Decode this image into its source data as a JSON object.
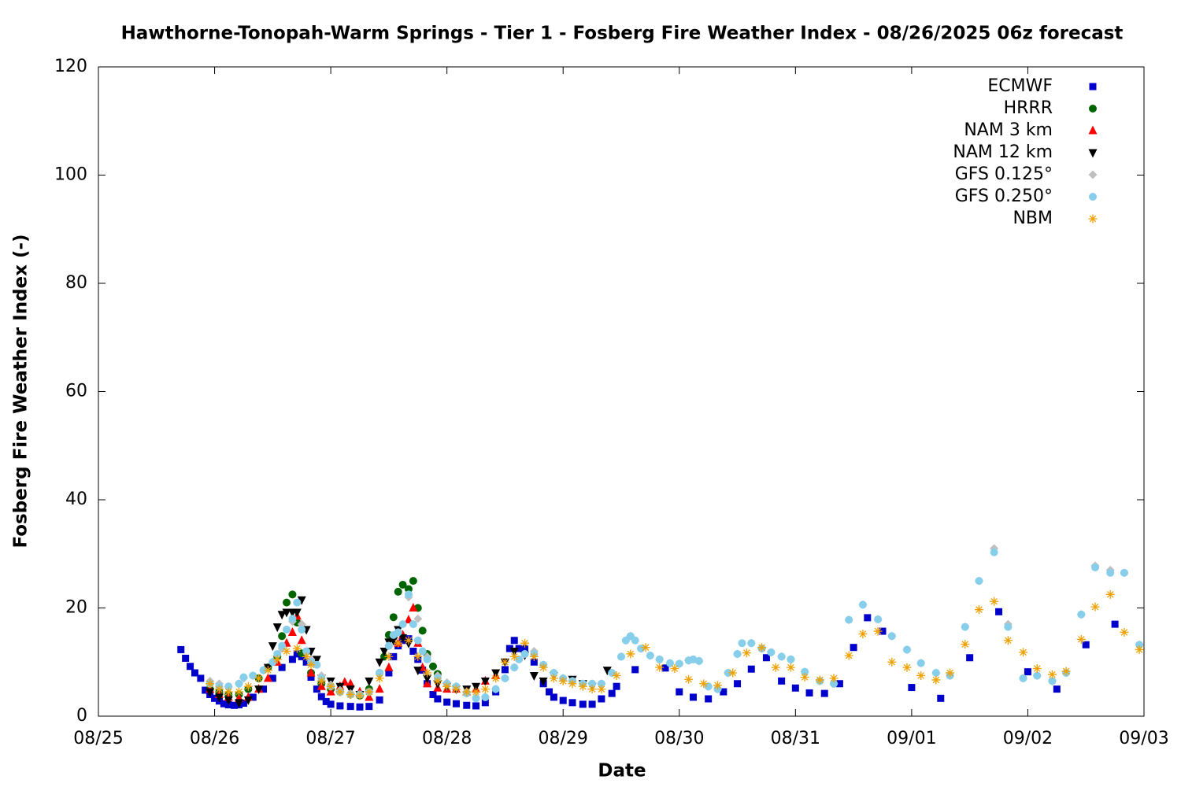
{
  "chart_data": {
    "type": "scatter",
    "title": "Hawthorne-Tonopah-Warm Springs - Tier 1 - Fosberg Fire Weather Index - 08/26/2025 06z forecast",
    "xlabel": "Date",
    "ylabel": "Fosberg Fire Weather Index (-)",
    "xlim": [
      0,
      9
    ],
    "xticks": [
      {
        "value": 0,
        "label": "08/25"
      },
      {
        "value": 1,
        "label": "08/26"
      },
      {
        "value": 2,
        "label": "08/27"
      },
      {
        "value": 3,
        "label": "08/28"
      },
      {
        "value": 4,
        "label": "08/29"
      },
      {
        "value": 5,
        "label": "08/30"
      },
      {
        "value": 6,
        "label": "08/31"
      },
      {
        "value": 7,
        "label": "09/01"
      },
      {
        "value": 8,
        "label": "09/02"
      },
      {
        "value": 9,
        "label": "09/03"
      }
    ],
    "ylim": [
      0,
      120
    ],
    "yticks": [
      0,
      20,
      40,
      60,
      80,
      100,
      120
    ],
    "grid": false,
    "legend": "top right",
    "series": [
      {
        "name": "ECMWF",
        "color": "#0000cc",
        "marker": "square",
        "x": [
          0.71,
          0.75,
          0.79,
          0.83,
          0.88,
          0.92,
          0.96,
          1.0,
          1.04,
          1.08,
          1.12,
          1.17,
          1.21,
          1.25,
          1.33,
          1.42,
          1.5,
          1.58,
          1.67,
          1.71,
          1.75,
          1.79,
          1.83,
          1.88,
          1.92,
          1.96,
          2.0,
          2.08,
          2.17,
          2.25,
          2.33,
          2.42,
          2.5,
          2.54,
          2.58,
          2.62,
          2.67,
          2.71,
          2.75,
          2.79,
          2.83,
          2.88,
          2.92,
          3.0,
          3.08,
          3.17,
          3.25,
          3.33,
          3.42,
          3.5,
          3.54,
          3.58,
          3.62,
          3.67,
          3.75,
          3.83,
          3.88,
          3.92,
          4.0,
          4.08,
          4.17,
          4.25,
          4.33,
          4.42,
          4.46,
          4.62,
          4.88,
          5.0,
          5.12,
          5.25,
          5.38,
          5.5,
          5.62,
          5.75,
          5.88,
          6.0,
          6.12,
          6.25,
          6.38,
          6.5,
          6.62,
          6.75,
          7.0,
          7.25,
          7.5,
          7.75,
          8.0,
          8.25,
          8.5,
          8.75
        ],
        "values": [
          12.3,
          10.7,
          9.2,
          8,
          7,
          4.8,
          4,
          3.3,
          2.8,
          2.3,
          2.1,
          2.0,
          2.1,
          2.4,
          3.5,
          5,
          7,
          9,
          10.5,
          11.5,
          11,
          10,
          7.2,
          5,
          3.6,
          2.7,
          2.2,
          1.9,
          1.8,
          1.7,
          1.8,
          3,
          8,
          11,
          13,
          14,
          14.3,
          12,
          10.5,
          8.5,
          6,
          4,
          3.2,
          2.6,
          2.3,
          2.0,
          1.9,
          2.5,
          4.5,
          8.6,
          12.5,
          14,
          12.5,
          12.5,
          10,
          6,
          4.5,
          3.5,
          2.9,
          2.5,
          2.2,
          2.2,
          3.2,
          4.2,
          5.5,
          8.6,
          8.9,
          4.5,
          3.5,
          3.2,
          4.5,
          6,
          8.7,
          10.8,
          6.5,
          5.2,
          4.3,
          4.2,
          6,
          12.7,
          18.2,
          15.7,
          5.3,
          3.3,
          10.8,
          19.3,
          8.2,
          5.0,
          13.2,
          17.0
        ]
      },
      {
        "name": "HRRR",
        "color": "#006400",
        "marker": "circle",
        "x": [
          0.96,
          1.04,
          1.12,
          1.21,
          1.29,
          1.38,
          1.46,
          1.54,
          1.58,
          1.62,
          1.67,
          1.71,
          1.75,
          1.83,
          1.92,
          2.0,
          2.08,
          2.17,
          2.25,
          2.33,
          2.42,
          2.46,
          2.5,
          2.54,
          2.58,
          2.62,
          2.67,
          2.71,
          2.75,
          2.79,
          2.83,
          2.88,
          2.92
        ],
        "values": [
          5,
          4.5,
          4,
          4,
          5,
          7,
          9,
          11,
          14.8,
          21,
          22.5,
          17.3,
          11.6,
          8,
          6,
          5,
          4.5,
          4,
          3.8,
          5,
          8,
          11,
          15,
          18.3,
          23,
          24.3,
          23.5,
          25,
          20,
          15.8,
          11.5,
          9.2,
          7.8
        ]
      },
      {
        "name": "NAM 3 km",
        "color": "#ff0000",
        "marker": "triangle",
        "x": [
          0.96,
          1.04,
          1.12,
          1.21,
          1.29,
          1.38,
          1.46,
          1.54,
          1.62,
          1.67,
          1.71,
          1.75,
          1.83,
          1.92,
          2.0,
          2.08,
          2.12,
          2.17,
          2.25,
          2.33,
          2.42,
          2.5,
          2.58,
          2.62,
          2.67,
          2.71,
          2.75,
          2.79,
          2.83,
          2.92,
          3.0,
          3.08,
          3.17,
          3.25,
          3.33,
          3.42
        ],
        "values": [
          5,
          4,
          3.5,
          3.3,
          3.5,
          5,
          7,
          10,
          13.5,
          15.5,
          18.5,
          14,
          8,
          5.5,
          4.5,
          5.5,
          6.3,
          6,
          4.5,
          3.5,
          5,
          9,
          13.5,
          15,
          17.8,
          20,
          13.5,
          9,
          6,
          5.2,
          5,
          5,
          4.5,
          5,
          6.5,
          7.5
        ]
      },
      {
        "name": "NAM 12 km",
        "color": "#000000",
        "marker": "triangle-down",
        "x": [
          0.96,
          1.04,
          1.12,
          1.21,
          1.29,
          1.38,
          1.46,
          1.5,
          1.54,
          1.58,
          1.62,
          1.67,
          1.71,
          1.75,
          1.79,
          1.83,
          1.88,
          1.92,
          2.0,
          2.08,
          2.17,
          2.25,
          2.33,
          2.42,
          2.46,
          2.5,
          2.54,
          2.58,
          2.62,
          2.67,
          2.75,
          2.83,
          2.92,
          3.0,
          3.08,
          3.17,
          3.25,
          3.33,
          3.42,
          3.5,
          3.58,
          3.67,
          3.75,
          3.83,
          3.92,
          4.08,
          4.17,
          4.25,
          4.38
        ],
        "values": [
          4.5,
          3.5,
          3,
          2.5,
          3,
          5,
          9,
          13,
          16.5,
          18.8,
          19.2,
          19.2,
          19.2,
          21.5,
          16,
          12,
          10.5,
          7,
          6.5,
          5.5,
          5,
          4,
          6.5,
          10,
          12,
          13.7,
          14,
          16,
          14.5,
          13.5,
          8.5,
          7,
          6,
          5.5,
          5,
          5,
          5.5,
          6.5,
          8,
          10,
          12,
          11.3,
          7.5,
          6.5,
          7.5,
          6.8,
          6,
          5.5,
          8.5
        ]
      },
      {
        "name": "GFS 0.125°",
        "color": "#c0c0c0",
        "marker": "diamond",
        "x": [
          0.96,
          1.04,
          1.12,
          1.21,
          1.25,
          1.33,
          1.42,
          1.5,
          1.58,
          1.67,
          1.75,
          1.83,
          1.92,
          2.0,
          2.08,
          2.17,
          2.25,
          2.33,
          2.42,
          2.5,
          2.58,
          2.67,
          2.75,
          2.83,
          2.92,
          3.0,
          3.08,
          3.17,
          3.25,
          3.33,
          3.42,
          3.5,
          3.58,
          3.67,
          3.75,
          3.83,
          3.92,
          4.0,
          4.08,
          4.17,
          4.25,
          4.33,
          4.42,
          4.5,
          4.58,
          4.67,
          4.75,
          4.83,
          4.92,
          5.0,
          5.08,
          5.17,
          5.25,
          5.33,
          5.42,
          5.5,
          5.62,
          5.71,
          5.79,
          5.88,
          5.96,
          6.08,
          6.21,
          6.33,
          6.46,
          6.58,
          6.71,
          6.83,
          6.96,
          7.08,
          7.21,
          7.33,
          7.46,
          7.58,
          7.71,
          7.83,
          7.96,
          8.08,
          8.21,
          8.33,
          8.46,
          8.58,
          8.71,
          8.83,
          8.96
        ],
        "values": [
          6.5,
          6,
          5.5,
          6,
          7,
          7.5,
          8.5,
          10,
          12.5,
          17.5,
          17,
          10.5,
          7.5,
          5.8,
          4.8,
          4.2,
          4,
          4.5,
          8,
          13,
          15.5,
          22,
          18,
          11,
          7.5,
          6.2,
          5.5,
          4.5,
          3.5,
          3.6,
          5,
          7,
          9,
          11.5,
          12,
          9.5,
          8,
          7,
          6.5,
          6,
          6,
          6,
          8,
          11,
          14.8,
          12.5,
          11.2,
          10.5,
          9.8,
          9.7,
          10.3,
          10.2,
          5.5,
          5,
          8,
          11.5,
          13.5,
          12.5,
          11.8,
          11,
          10.5,
          8.2,
          6.5,
          6,
          17.8,
          20.6,
          17.9,
          14.8,
          12.3,
          9.8,
          8,
          7.5,
          16.5,
          25,
          31,
          17,
          7,
          7.5,
          6.5,
          8,
          18.8,
          27.8,
          27,
          26.5,
          13.2
        ]
      },
      {
        "name": "GFS 0.250°",
        "color": "#87ceeb",
        "marker": "circle",
        "x": [
          0.96,
          1.04,
          1.12,
          1.21,
          1.25,
          1.33,
          1.42,
          1.5,
          1.54,
          1.58,
          1.62,
          1.67,
          1.71,
          1.75,
          1.79,
          1.83,
          1.88,
          1.92,
          2.0,
          2.08,
          2.17,
          2.25,
          2.33,
          2.42,
          2.5,
          2.54,
          2.58,
          2.62,
          2.67,
          2.71,
          2.75,
          2.79,
          2.83,
          2.92,
          3.0,
          3.08,
          3.17,
          3.25,
          3.33,
          3.42,
          3.5,
          3.58,
          3.62,
          3.67,
          3.75,
          3.83,
          3.92,
          4.0,
          4.08,
          4.17,
          4.25,
          4.33,
          4.42,
          4.5,
          4.54,
          4.58,
          4.62,
          4.67,
          4.75,
          4.83,
          4.92,
          5.0,
          5.08,
          5.12,
          5.17,
          5.25,
          5.33,
          5.42,
          5.5,
          5.54,
          5.62,
          5.71,
          5.79,
          5.88,
          5.96,
          6.08,
          6.21,
          6.33,
          6.46,
          6.58,
          6.71,
          6.83,
          6.96,
          7.08,
          7.21,
          7.33,
          7.46,
          7.58,
          7.71,
          7.83,
          7.96,
          8.08,
          8.21,
          8.33,
          8.46,
          8.58,
          8.71,
          8.83,
          8.96
        ],
        "values": [
          6,
          5.5,
          5.5,
          6,
          7.2,
          7.5,
          8.5,
          10,
          11.5,
          13,
          16,
          18,
          21,
          16,
          12,
          10,
          9.5,
          7,
          5.5,
          4.5,
          4,
          4,
          4.5,
          8,
          13,
          15,
          15.5,
          17,
          22.5,
          17,
          14,
          12,
          10.5,
          7,
          6,
          5.5,
          4.2,
          3.3,
          3.5,
          5,
          7,
          9,
          10.5,
          11.5,
          11.5,
          9.5,
          8,
          7,
          6.5,
          6,
          6,
          6,
          8,
          11,
          14,
          14.8,
          14,
          12.5,
          11.2,
          10.5,
          9.8,
          9.7,
          10.3,
          10.5,
          10.2,
          5.5,
          5,
          8,
          11.5,
          13.5,
          13.5,
          12.5,
          11.8,
          11,
          10.5,
          8.2,
          6.5,
          6,
          17.8,
          20.6,
          17.9,
          14.8,
          12.3,
          9.8,
          8,
          7.5,
          16.5,
          25,
          30.3,
          16.5,
          7,
          7.5,
          6.5,
          8,
          18.8,
          27.5,
          26.5,
          26.5,
          13.2
        ]
      },
      {
        "name": "NBM",
        "color": "#f0a000",
        "marker": "asterisk",
        "x": [
          0.96,
          1.04,
          1.12,
          1.21,
          1.29,
          1.38,
          1.46,
          1.54,
          1.62,
          1.71,
          1.79,
          1.83,
          1.92,
          2.0,
          2.08,
          2.17,
          2.25,
          2.33,
          2.42,
          2.5,
          2.58,
          2.67,
          2.75,
          2.83,
          2.92,
          3.0,
          3.08,
          3.17,
          3.25,
          3.33,
          3.42,
          3.5,
          3.58,
          3.67,
          3.75,
          3.83,
          3.92,
          4.0,
          4.08,
          4.17,
          4.25,
          4.33,
          4.46,
          4.58,
          4.71,
          4.83,
          4.96,
          5.08,
          5.21,
          5.33,
          5.46,
          5.58,
          5.71,
          5.83,
          5.96,
          6.08,
          6.21,
          6.33,
          6.46,
          6.58,
          6.71,
          6.83,
          6.96,
          7.08,
          7.21,
          7.33,
          7.46,
          7.58,
          7.71,
          7.83,
          7.96,
          8.08,
          8.21,
          8.33,
          8.46,
          8.58,
          8.71,
          8.83,
          8.96
        ],
        "values": [
          6,
          5,
          4.5,
          4.5,
          5.5,
          7,
          8.5,
          10.5,
          12,
          12.5,
          11,
          9.5,
          6.5,
          5.5,
          4.5,
          4,
          3.8,
          4.5,
          7,
          11,
          13.5,
          14,
          11,
          8,
          6.5,
          5.5,
          5,
          4.5,
          4.5,
          5,
          7,
          10,
          11,
          13.5,
          11,
          9,
          7,
          6.5,
          6,
          5.5,
          5,
          5,
          7.5,
          11.5,
          12.7,
          9,
          8.8,
          6.8,
          6,
          5.7,
          8,
          11.7,
          12.7,
          9,
          9,
          7.2,
          6.7,
          7,
          11.2,
          15.2,
          15.7,
          10,
          9,
          7.5,
          6.7,
          8,
          13.3,
          19.7,
          21.2,
          14,
          11.8,
          8.8,
          7.7,
          8.3,
          14.2,
          20.2,
          22.5,
          15.5,
          12.3
        ]
      }
    ]
  }
}
